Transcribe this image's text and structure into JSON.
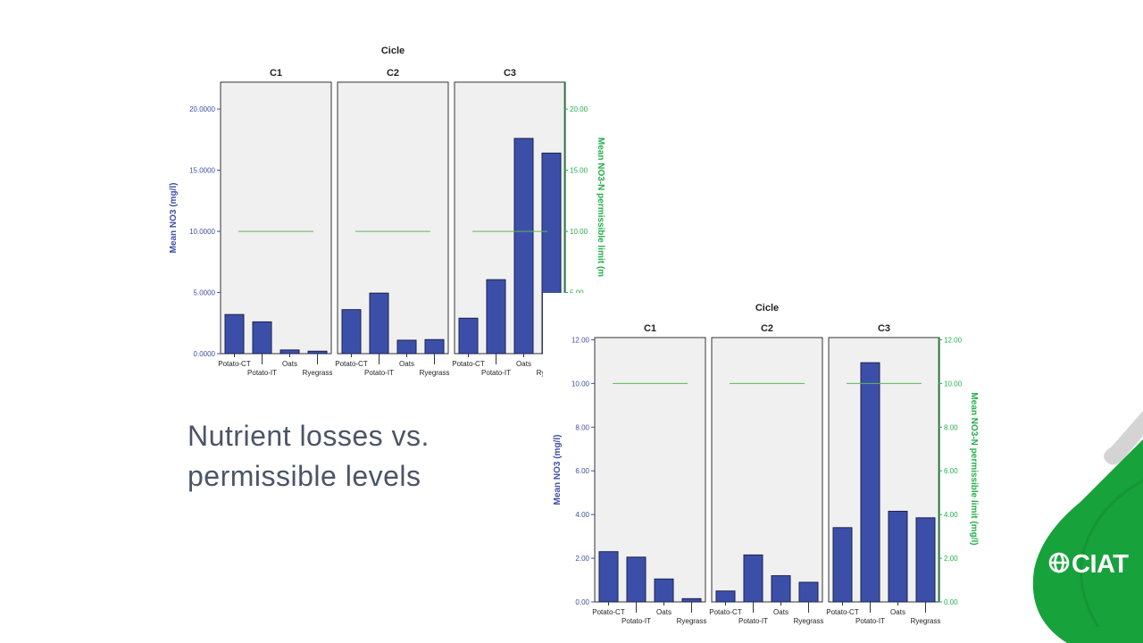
{
  "caption": {
    "line1": "Nutrient losses vs.",
    "line2": "permissible levels"
  },
  "logo": {
    "text": "CIAT"
  },
  "colors": {
    "bar": "#3c4fa8",
    "bar_stroke": "#1c2250",
    "limit_line": "#5cb85c",
    "left_axis": "#3c50a8",
    "right_axis": "#22b04b",
    "panel_bg": "#f0f0f0",
    "logo_green": "#17a23c",
    "logo_gray": "#d4d4d4"
  },
  "chart_data": [
    {
      "type": "bar",
      "title": "Cicle",
      "panels": [
        "C1",
        "C2",
        "C3"
      ],
      "categories": [
        "Potato-CT",
        "Potato-IT",
        "Oats",
        "Ryegrass"
      ],
      "series": [
        {
          "values": [
            [
              3.2,
              2.6,
              0.3,
              0.2
            ],
            [
              3.6,
              4.95,
              1.1,
              1.15
            ],
            [
              2.9,
              6.05,
              17.6,
              16.4
            ]
          ]
        }
      ],
      "permissible_limit": 10,
      "ylabel": "Mean NO3 (mg/l)",
      "ylabel_right": "Mean NO3-N permissible limit (m",
      "ylim": [
        0,
        22.2
      ],
      "y_ticks": [
        "0.0000",
        "5.0000",
        "10.0000",
        "15.0000",
        "20.0000"
      ],
      "y_ticks_right": [
        "5.00",
        "10.00",
        "15.00",
        "20.00"
      ],
      "grid": false
    },
    {
      "type": "bar",
      "title": "Cicle",
      "panels": [
        "C1",
        "C2",
        "C3"
      ],
      "categories": [
        "Potato-CT",
        "Potato-IT",
        "Oats",
        "Ryegrass"
      ],
      "series": [
        {
          "values": [
            [
              2.3,
              2.05,
              1.05,
              0.15
            ],
            [
              0.5,
              2.15,
              1.2,
              0.9
            ],
            [
              3.4,
              10.95,
              4.15,
              3.85
            ]
          ]
        }
      ],
      "permissible_limit": 10,
      "ylabel": "Mean NO3 (mg/l)",
      "ylabel_right": "Mean NO3-N permissible limit (mg/l)",
      "ylim": [
        0,
        12.1
      ],
      "y_ticks": [
        "0.00",
        "2.00",
        "4.00",
        "6.00",
        "8.00",
        "10.00",
        "12.00"
      ],
      "y_ticks_right": [
        "0.00",
        "2.00",
        "4.00",
        "6.00",
        "8.00",
        "10.00",
        "12.00"
      ],
      "grid": false
    }
  ]
}
